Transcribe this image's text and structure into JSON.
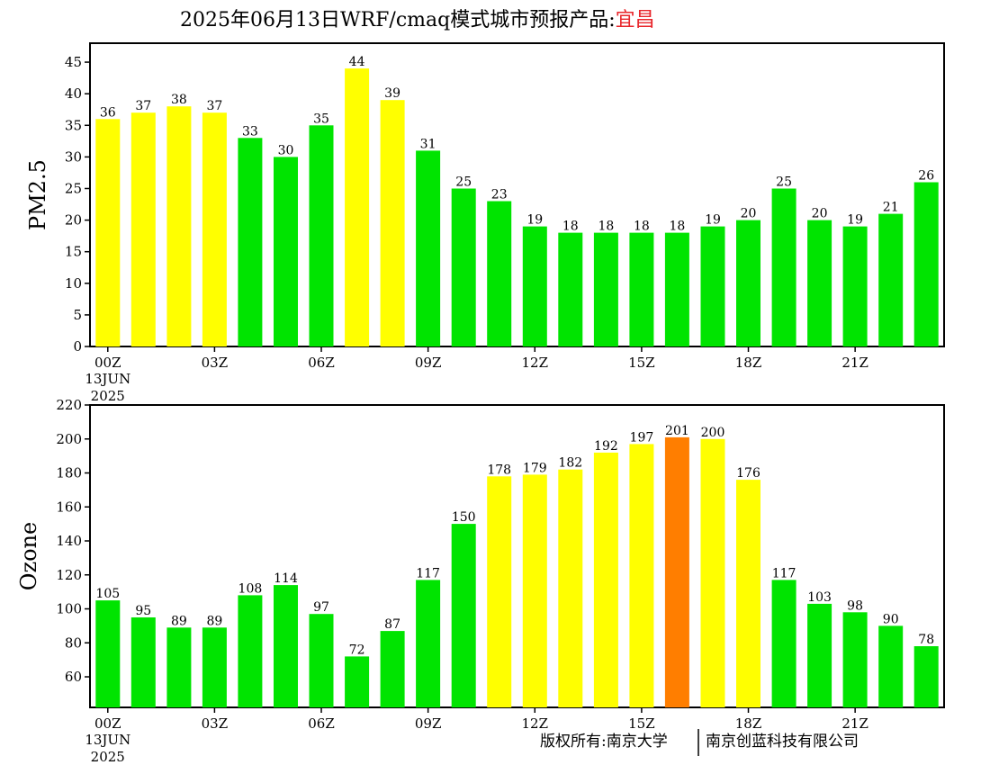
{
  "header": {
    "title_prefix": "2025年06月13日WRF/cmaq模式城市预报产品:",
    "city": "宜昌"
  },
  "colors": {
    "good": "#00e400",
    "moderate": "#ffff00",
    "sensitive": "#ff7e00"
  },
  "footer": {
    "copyright_left": "版权所有:南京大学",
    "copyright_right": "南京创蓝科技有限公司"
  },
  "chart_data": [
    {
      "type": "bar",
      "ylabel": "PM2.5",
      "ylim": [
        0,
        48
      ],
      "yticks": [
        0,
        5,
        10,
        15,
        20,
        25,
        30,
        35,
        40,
        45
      ],
      "xticks": [
        {
          "index": 0,
          "label": "00Z",
          "sub": [
            "13JUN",
            "2025"
          ]
        },
        {
          "index": 3,
          "label": "03Z"
        },
        {
          "index": 6,
          "label": "06Z"
        },
        {
          "index": 9,
          "label": "09Z"
        },
        {
          "index": 12,
          "label": "12Z"
        },
        {
          "index": 15,
          "label": "15Z"
        },
        {
          "index": 18,
          "label": "18Z"
        },
        {
          "index": 21,
          "label": "21Z"
        }
      ],
      "values": [
        36,
        37,
        38,
        37,
        33,
        30,
        35,
        44,
        39,
        31,
        25,
        23,
        19,
        18,
        18,
        18,
        18,
        19,
        20,
        25,
        20,
        19,
        21,
        26
      ],
      "bar_colors": [
        "moderate",
        "moderate",
        "moderate",
        "moderate",
        "good",
        "good",
        "good",
        "moderate",
        "moderate",
        "good",
        "good",
        "good",
        "good",
        "good",
        "good",
        "good",
        "good",
        "good",
        "good",
        "good",
        "good",
        "good",
        "good",
        "good"
      ]
    },
    {
      "type": "bar",
      "ylabel": "Ozone",
      "ylim": [
        42,
        220
      ],
      "yticks": [
        60,
        80,
        100,
        120,
        140,
        160,
        180,
        200,
        220
      ],
      "xticks": [
        {
          "index": 0,
          "label": "00Z",
          "sub": [
            "13JUN",
            "2025"
          ]
        },
        {
          "index": 3,
          "label": "03Z"
        },
        {
          "index": 6,
          "label": "06Z"
        },
        {
          "index": 9,
          "label": "09Z"
        },
        {
          "index": 12,
          "label": "12Z"
        },
        {
          "index": 15,
          "label": "15Z"
        },
        {
          "index": 18,
          "label": "18Z"
        },
        {
          "index": 21,
          "label": "21Z"
        }
      ],
      "values": [
        105,
        95,
        89,
        89,
        108,
        114,
        97,
        72,
        87,
        117,
        150,
        178,
        179,
        182,
        192,
        197,
        201,
        200,
        176,
        117,
        103,
        98,
        90,
        78
      ],
      "bar_colors": [
        "good",
        "good",
        "good",
        "good",
        "good",
        "good",
        "good",
        "good",
        "good",
        "good",
        "good",
        "moderate",
        "moderate",
        "moderate",
        "moderate",
        "moderate",
        "sensitive",
        "moderate",
        "moderate",
        "good",
        "good",
        "good",
        "good",
        "good"
      ]
    }
  ]
}
